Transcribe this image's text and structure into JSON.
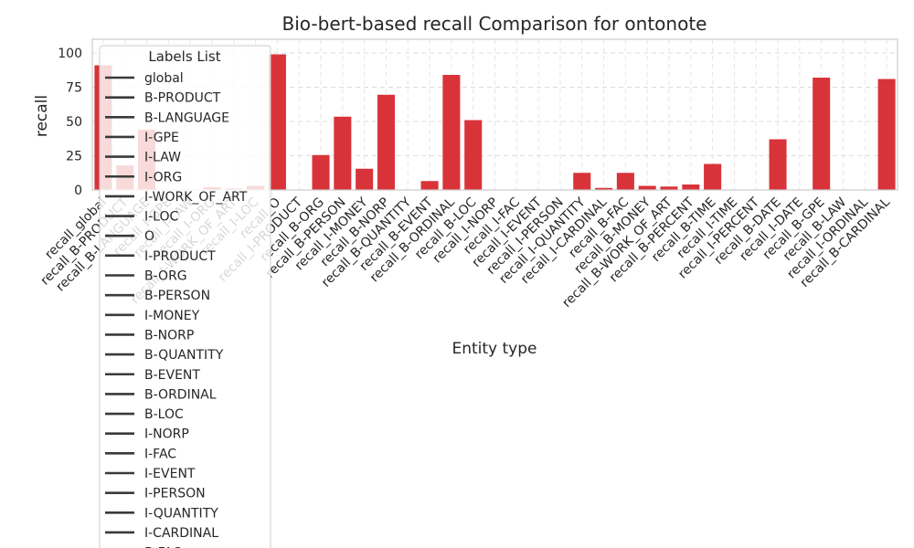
{
  "chart_data": {
    "type": "bar",
    "title": "Bio-bert-based  recall Comparison for ontonote",
    "xlabel": "Entity type",
    "ylabel": "recall",
    "ylim": [
      0,
      110
    ],
    "yticks": [
      0,
      25,
      50,
      75,
      100
    ],
    "grid": true,
    "bar_color": "#d9333a",
    "categories": [
      "recall_global",
      "recall_B-PRODUCT",
      "recall_B-LANGUAGE",
      "recall_I-GPE",
      "recall_I-LAW",
      "recall_I-ORG",
      "recall_I-WORK_OF_ART",
      "recall_I-LOC",
      "recall_O",
      "recall_I-PRODUCT",
      "recall_B-ORG",
      "recall_B-PERSON",
      "recall_I-MONEY",
      "recall_B-NORP",
      "recall_B-QUANTITY",
      "recall_B-EVENT",
      "recall_B-ORDINAL",
      "recall_B-LOC",
      "recall_I-NORP",
      "recall_I-FAC",
      "recall_I-EVENT",
      "recall_I-PERSON",
      "recall_I-QUANTITY",
      "recall_I-CARDINAL",
      "recall_B-FAC",
      "recall_B-MONEY",
      "recall_B-WORK_OF_ART",
      "recall_B-PERCENT",
      "recall_B-TIME",
      "recall_I-TIME",
      "recall_I-PERCENT",
      "recall_B-DATE",
      "recall_I-DATE",
      "recall_B-GPE",
      "recall_B-LAW",
      "recall_I-ORDINAL",
      "recall_B-CARDINAL"
    ],
    "values": [
      91,
      18,
      44,
      0,
      0,
      2,
      1,
      3,
      99,
      0,
      25.5,
      53.5,
      15.5,
      69.5,
      0,
      6.5,
      84,
      51,
      0,
      0,
      0,
      0,
      12.5,
      1.5,
      12.5,
      3,
      2.5,
      4,
      19,
      0,
      0,
      37,
      0,
      82,
      0,
      0,
      81
    ],
    "legend": {
      "title": "Labels List",
      "placement": "upper-left",
      "entries": [
        "global",
        "B-PRODUCT",
        "B-LANGUAGE",
        "I-GPE",
        "I-LAW",
        "I-ORG",
        "I-WORK_OF_ART",
        "I-LOC",
        "O",
        "I-PRODUCT",
        "B-ORG",
        "B-PERSON",
        "I-MONEY",
        "B-NORP",
        "B-QUANTITY",
        "B-EVENT",
        "B-ORDINAL",
        "B-LOC",
        "I-NORP",
        "I-FAC",
        "I-EVENT",
        "I-PERSON",
        "I-QUANTITY",
        "I-CARDINAL",
        "B-FAC"
      ]
    }
  }
}
